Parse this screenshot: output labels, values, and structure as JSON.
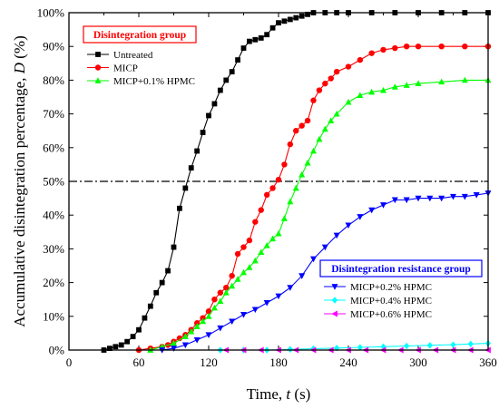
{
  "chart_data": {
    "type": "line",
    "xlabel": "Time, t (s)",
    "xlabel_parts": [
      "Time, ",
      "t",
      " (s)"
    ],
    "ylabel": "Accumulative disintegration percentage, D (%)",
    "ylabel_parts": [
      "Accumulative disintegration percentage, ",
      "D",
      " (%)"
    ],
    "xlim": [
      0,
      360
    ],
    "ylim": [
      0,
      100
    ],
    "xticks": [
      "0",
      "60",
      "120",
      "180",
      "240",
      "300",
      "360"
    ],
    "yticks": [
      "0%",
      "10%",
      "20%",
      "30%",
      "40%",
      "50%",
      "60%",
      "70%",
      "80%",
      "90%",
      "100%"
    ],
    "reference_line_y": 50,
    "groups": [
      {
        "title": "Disintegration group",
        "color": "#ff0000",
        "legend_position": "top-left"
      },
      {
        "title": "Disintegration resistance group",
        "color": "#0000ff",
        "legend_position": "bottom-right"
      }
    ],
    "series": [
      {
        "name": "Untreated",
        "group": 0,
        "color": "#000000",
        "marker": "square",
        "x": [
          30,
          35,
          40,
          45,
          50,
          55,
          60,
          65,
          70,
          75,
          80,
          85,
          90,
          95,
          100,
          105,
          110,
          115,
          120,
          125,
          130,
          135,
          140,
          145,
          150,
          155,
          160,
          165,
          170,
          175,
          180,
          185,
          190,
          195,
          200,
          205,
          210,
          220,
          230,
          240,
          260,
          280,
          300,
          320,
          340,
          360
        ],
        "y": [
          0,
          0.5,
          1,
          1.5,
          2.5,
          4,
          6,
          9.5,
          13,
          17,
          20,
          23.5,
          30.5,
          42,
          48,
          54,
          59,
          64.5,
          69.5,
          73,
          77,
          80,
          82.5,
          86,
          89.5,
          91.5,
          92,
          92.5,
          93.5,
          95.5,
          97,
          97.5,
          98,
          98.5,
          99,
          99.5,
          100,
          100,
          100,
          100,
          100,
          100,
          100,
          100,
          100,
          100
        ]
      },
      {
        "name": "MICP",
        "group": 0,
        "color": "#ff0000",
        "marker": "circle",
        "x": [
          60,
          70,
          80,
          85,
          90,
          95,
          100,
          105,
          110,
          115,
          120,
          125,
          130,
          135,
          140,
          145,
          150,
          155,
          160,
          165,
          170,
          175,
          180,
          185,
          190,
          195,
          200,
          205,
          210,
          215,
          220,
          225,
          230,
          240,
          250,
          260,
          270,
          280,
          290,
          300,
          320,
          340,
          360
        ],
        "y": [
          0,
          0.5,
          1,
          1.5,
          2.5,
          3.5,
          4.5,
          6,
          8,
          9.5,
          11.5,
          15,
          17,
          18.5,
          22,
          28.5,
          30.5,
          32.5,
          38,
          41.5,
          46,
          48,
          50.5,
          55,
          61,
          65,
          66.5,
          68,
          74,
          77,
          79,
          80.5,
          82.5,
          84,
          86,
          88,
          89,
          89.5,
          90,
          90,
          90,
          90,
          90
        ]
      },
      {
        "name": "MICP+0.1% HPMC",
        "group": 0,
        "color": "#00ff00",
        "marker": "triangle-up",
        "x": [
          70,
          80,
          90,
          100,
          105,
          110,
          115,
          120,
          125,
          130,
          135,
          140,
          145,
          150,
          155,
          160,
          165,
          170,
          175,
          180,
          185,
          190,
          195,
          200,
          205,
          210,
          215,
          220,
          225,
          230,
          240,
          250,
          260,
          270,
          280,
          290,
          300,
          320,
          340,
          360
        ],
        "y": [
          0,
          1,
          2,
          4,
          5.5,
          7,
          8.5,
          10,
          12.5,
          14.5,
          17,
          19,
          21,
          23,
          24.5,
          26.5,
          29,
          31,
          33,
          34.5,
          39,
          44,
          48,
          52,
          55.5,
          59,
          62.5,
          65.5,
          68,
          70,
          73.5,
          75.5,
          76.5,
          77,
          78,
          78.5,
          79,
          79.5,
          80,
          80
        ]
      },
      {
        "name": "MICP+0.2% HPMC",
        "group": 1,
        "color": "#0000ff",
        "marker": "triangle-down",
        "x": [
          80,
          90,
          100,
          110,
          120,
          130,
          140,
          150,
          160,
          170,
          180,
          190,
          200,
          210,
          220,
          230,
          240,
          250,
          260,
          270,
          280,
          290,
          300,
          310,
          320,
          330,
          340,
          350,
          360
        ],
        "y": [
          0,
          0.5,
          1.5,
          3,
          4.5,
          6.5,
          8.5,
          10.5,
          12,
          14,
          16,
          18.5,
          22,
          27,
          30.5,
          34,
          37,
          39.5,
          41.5,
          43,
          44.5,
          44.5,
          45,
          45,
          45,
          45.5,
          45.5,
          46,
          46.5
        ]
      },
      {
        "name": "MICP+0.4% HPMC",
        "group": 1,
        "color": "#00ffff",
        "marker": "diamond",
        "x": [
          130,
          150,
          170,
          190,
          210,
          230,
          250,
          270,
          290,
          310,
          330,
          345,
          360
        ],
        "y": [
          0,
          0,
          0,
          0.2,
          0.4,
          0.6,
          0.8,
          1,
          1.2,
          1.4,
          1.6,
          1.8,
          2
        ]
      },
      {
        "name": "MICP+0.6% HPMC",
        "group": 1,
        "color": "#ff00ff",
        "marker": "triangle-left",
        "x": [
          135,
          150,
          165,
          180,
          195,
          210,
          225,
          240,
          255,
          270,
          285,
          300,
          315,
          330,
          345,
          360
        ],
        "y": [
          0,
          0,
          0,
          0,
          0,
          0,
          0,
          0,
          0,
          0,
          0,
          0,
          0,
          0,
          0,
          0
        ]
      }
    ]
  }
}
